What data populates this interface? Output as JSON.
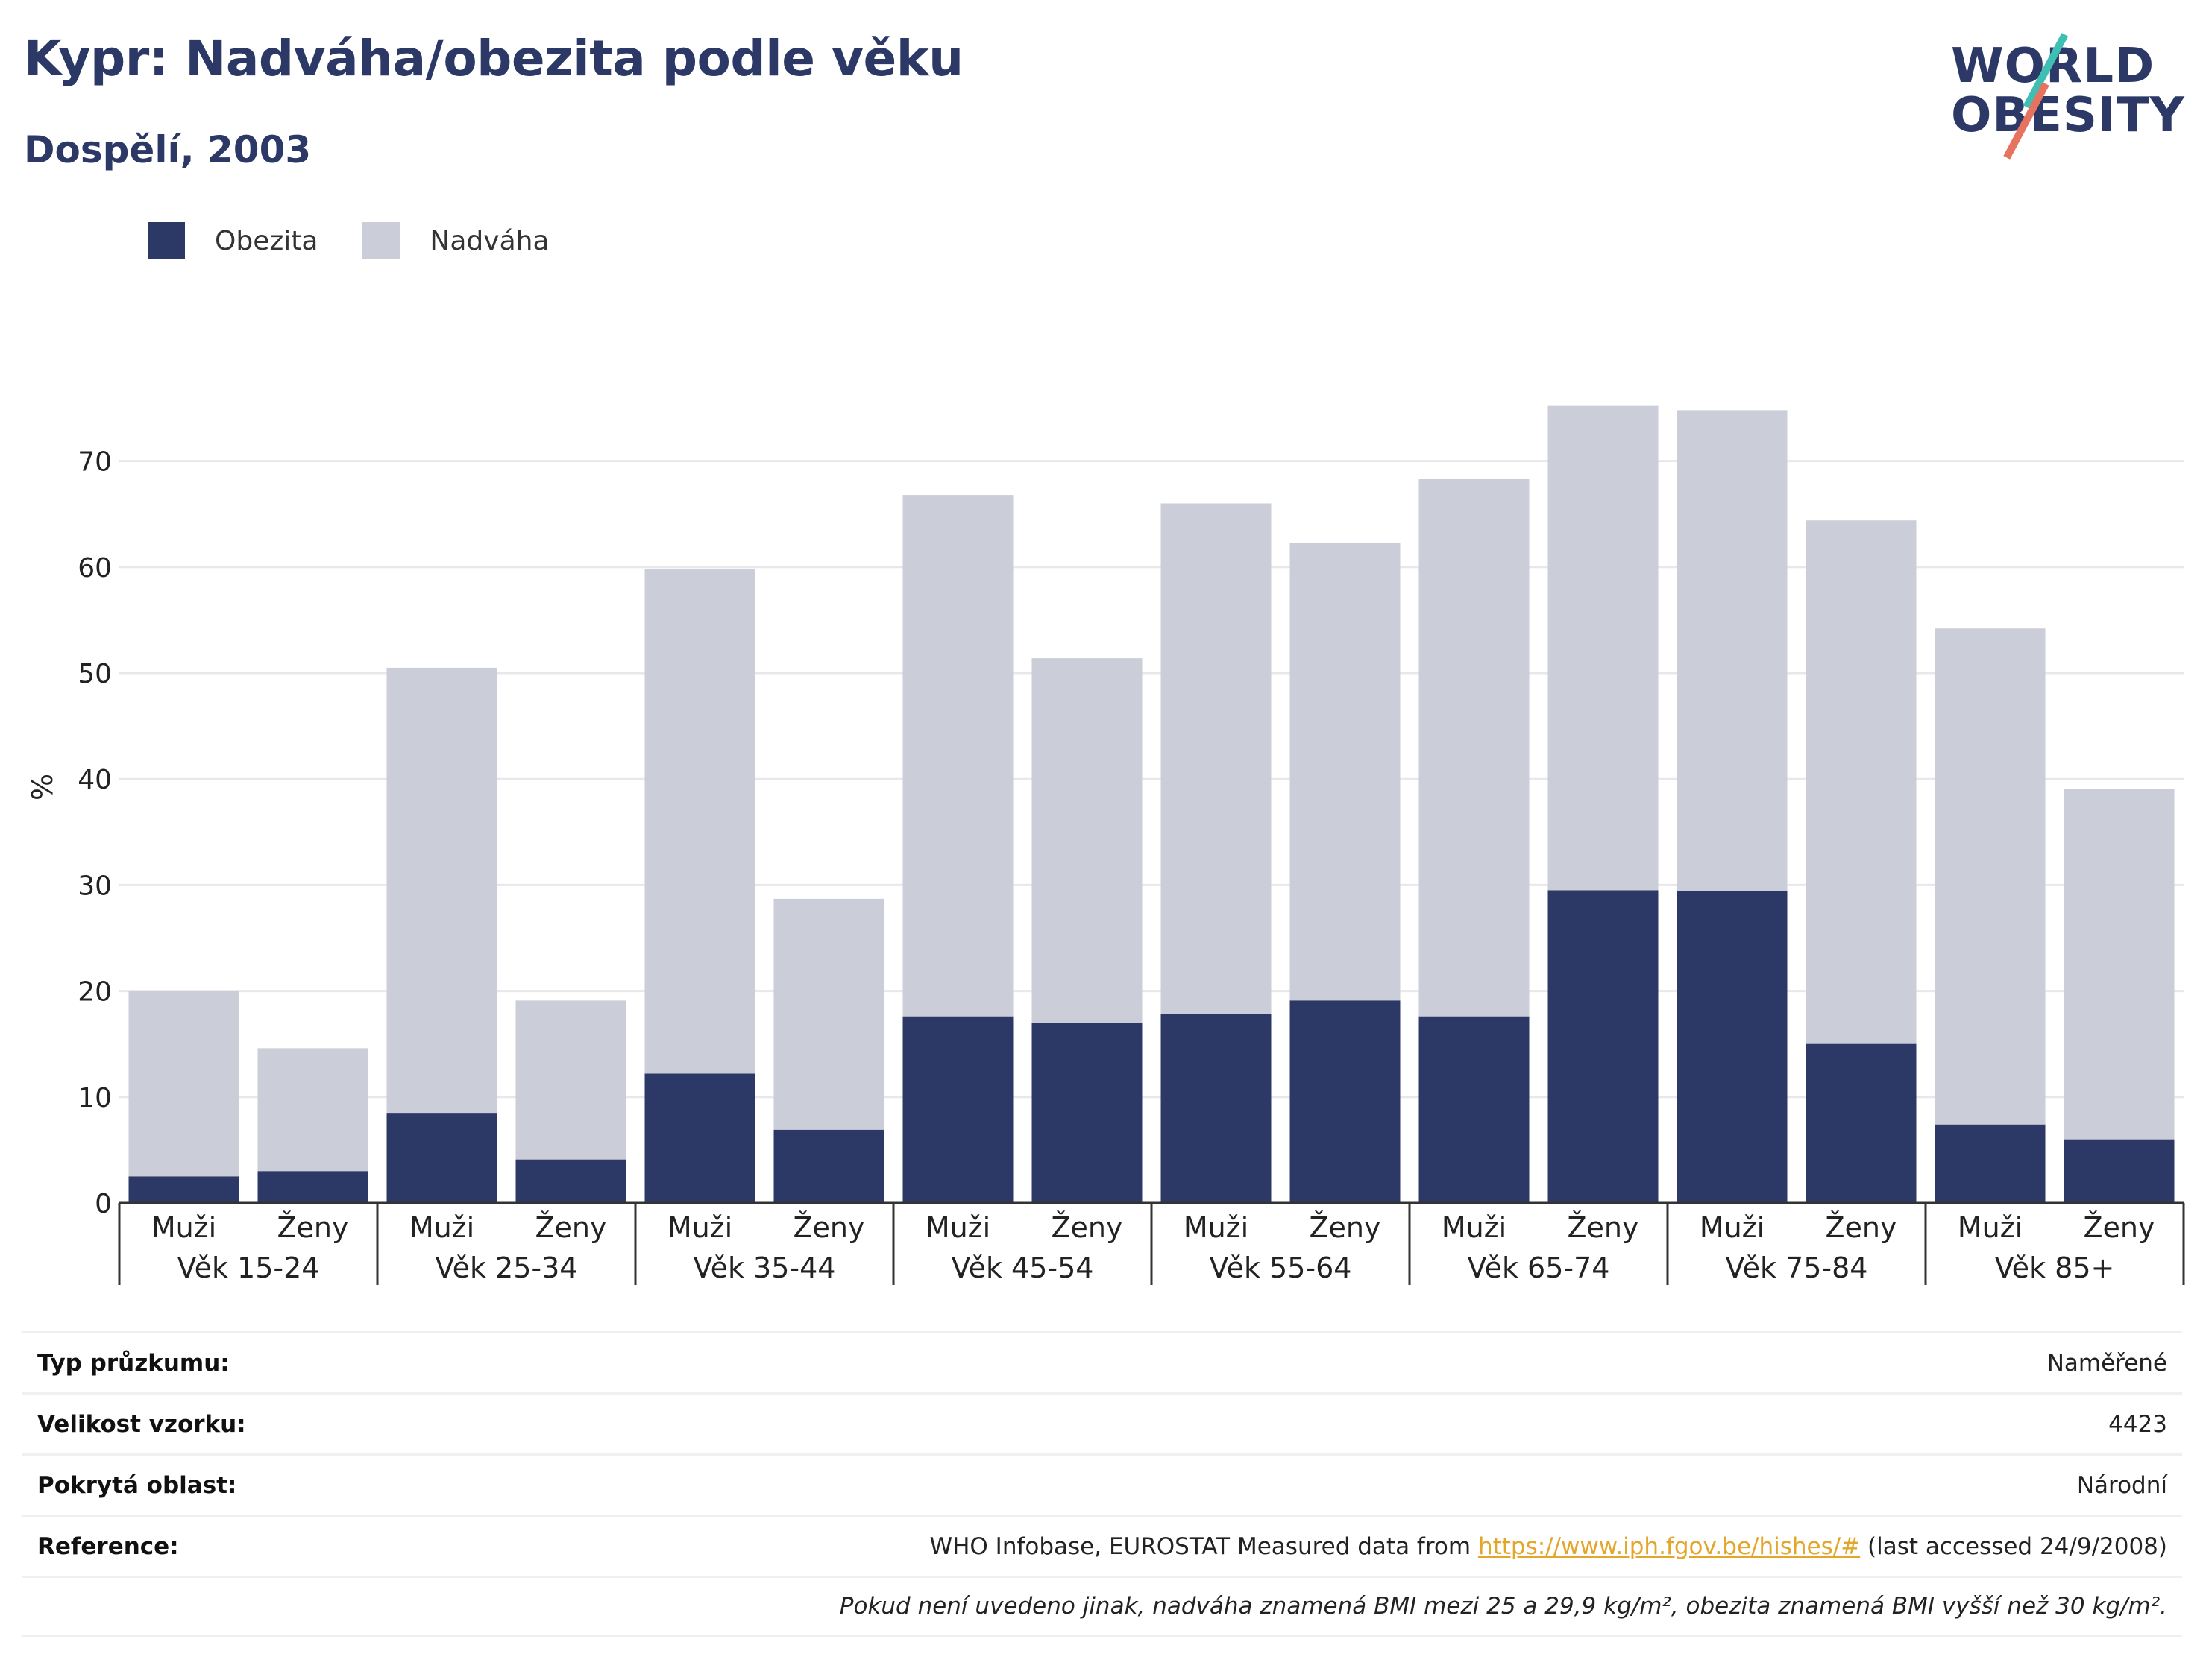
{
  "header": {
    "title": "Kypr: Nadváha/obezita podle věku",
    "subtitle": "Dospělí, 2003"
  },
  "logo": {
    "line1": "WORLD",
    "line2": "OBESITY",
    "colors": {
      "text": "#2c3866",
      "teal": "#3fbfb3",
      "red": "#e5735f"
    }
  },
  "colors": {
    "obesity": "#2c3866",
    "overweight": "#cbcdd8",
    "grid": "#e8e8ec",
    "axis": "#333333"
  },
  "chart_data": {
    "type": "bar",
    "stacked": true,
    "ylabel": "%",
    "ylim": [
      0,
      77
    ],
    "yticks": [
      0,
      10,
      20,
      30,
      40,
      50,
      60,
      70
    ],
    "grid": true,
    "legend_position": "top-left",
    "groups": [
      "Věk 15-24",
      "Věk 25-34",
      "Věk 35-44",
      "Věk 45-54",
      "Věk 55-64",
      "Věk 65-74",
      "Věk 75-84",
      "Věk 85+"
    ],
    "subcategories": [
      "Muži",
      "Ženy"
    ],
    "series": [
      {
        "name": "Obezita",
        "values": [
          2.5,
          3.0,
          8.5,
          4.1,
          12.2,
          6.9,
          17.6,
          17.0,
          17.8,
          19.1,
          17.6,
          29.5,
          29.4,
          15.0,
          7.4,
          6.0
        ]
      },
      {
        "name": "Nadváha",
        "values": [
          17.5,
          11.6,
          42.0,
          15.0,
          47.6,
          21.8,
          49.2,
          34.4,
          48.2,
          43.2,
          50.7,
          45.7,
          45.4,
          49.4,
          46.8,
          33.1
        ]
      }
    ]
  },
  "info": {
    "rows": [
      {
        "label": "Typ průzkumu:",
        "value": "Naměřené"
      },
      {
        "label": "Velikost vzorku:",
        "value": "4423"
      },
      {
        "label": "Pokrytá oblast:",
        "value": "Národní"
      }
    ],
    "reference": {
      "label": "Reference:",
      "prefix": "WHO Infobase, EUROSTAT Measured data from ",
      "link": "https://www.iph.fgov.be/hishes/#",
      "suffix": " (last accessed 24/9/2008)"
    },
    "note": "Pokud není uvedeno jinak, nadváha znamená BMI mezi 25 a 29,9 kg/m², obezita znamená BMI vyšší než 30 kg/m²."
  }
}
